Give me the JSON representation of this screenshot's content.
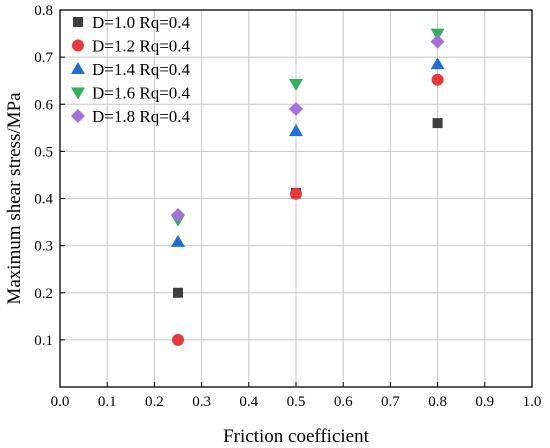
{
  "chart_data": {
    "type": "scatter",
    "title": "",
    "xlabel": "Friction coefficient",
    "ylabel": "Maximum shear stress/MPa",
    "xlim": [
      0.0,
      1.0
    ],
    "ylim": [
      0.0,
      0.8
    ],
    "xticks": [
      "0.0",
      "0.1",
      "0.2",
      "0.3",
      "0.4",
      "0.5",
      "0.6",
      "0.7",
      "0.8",
      "0.9",
      "1.0"
    ],
    "yticks": [
      "0.1",
      "0.2",
      "0.3",
      "0.4",
      "0.5",
      "0.6",
      "0.7",
      "0.8"
    ],
    "grid": true,
    "legend_position": "top-left",
    "series": [
      {
        "name": "D=1.0 Rq=0.4",
        "marker": "square",
        "color": "#3f3f3f",
        "points": [
          {
            "x": 0.25,
            "y": 0.2
          },
          {
            "x": 0.5,
            "y": 0.412
          },
          {
            "x": 0.8,
            "y": 0.56
          }
        ]
      },
      {
        "name": "D=1.2 Rq=0.4",
        "marker": "circle",
        "color": "#e8383c",
        "points": [
          {
            "x": 0.25,
            "y": 0.1
          },
          {
            "x": 0.5,
            "y": 0.41
          },
          {
            "x": 0.8,
            "y": 0.652
          }
        ]
      },
      {
        "name": "D=1.4 Rq=0.4",
        "marker": "triangle-up",
        "color": "#1f6fd6",
        "points": [
          {
            "x": 0.25,
            "y": 0.308
          },
          {
            "x": 0.5,
            "y": 0.543
          },
          {
            "x": 0.8,
            "y": 0.685
          }
        ]
      },
      {
        "name": "D=1.6 Rq=0.4",
        "marker": "triangle-down",
        "color": "#2fb35a",
        "points": [
          {
            "x": 0.25,
            "y": 0.355
          },
          {
            "x": 0.5,
            "y": 0.643
          },
          {
            "x": 0.8,
            "y": 0.75
          }
        ]
      },
      {
        "name": "D=1.8 Rq=0.4",
        "marker": "diamond",
        "color": "#a66ee0",
        "points": [
          {
            "x": 0.25,
            "y": 0.365
          },
          {
            "x": 0.5,
            "y": 0.59
          },
          {
            "x": 0.8,
            "y": 0.733
          }
        ]
      }
    ]
  }
}
